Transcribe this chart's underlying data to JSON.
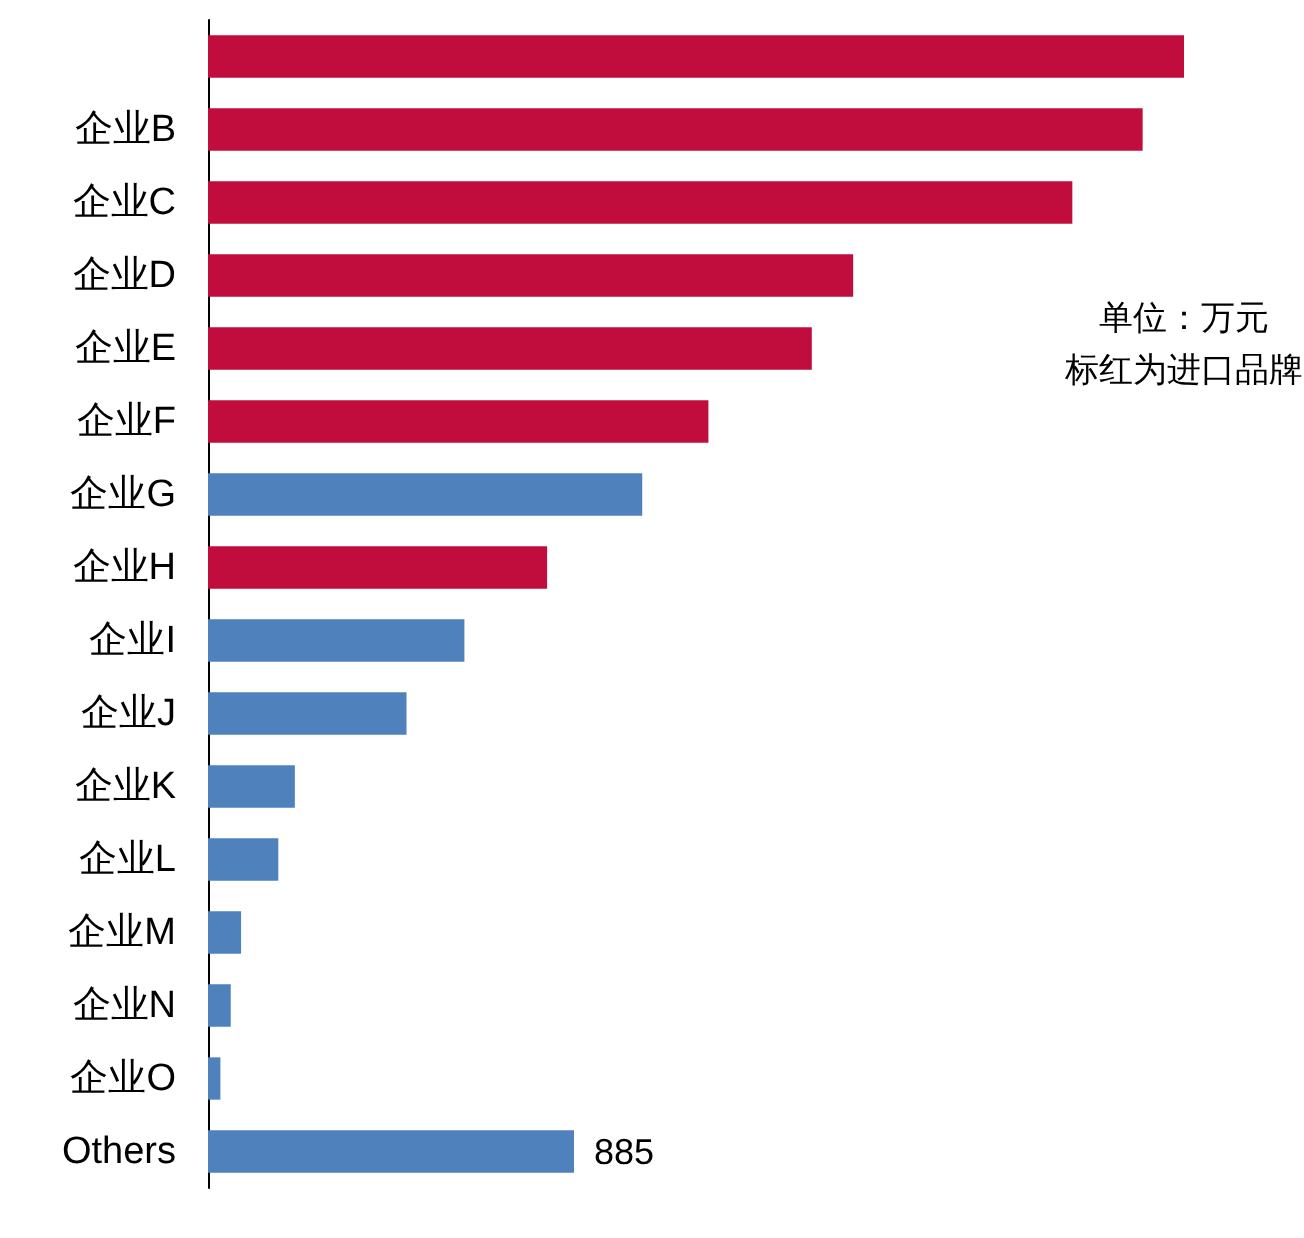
{
  "chart_data": {
    "type": "bar",
    "orientation": "horizontal",
    "categories": [
      null,
      "企业B",
      "企业C",
      "企业D",
      "企业E",
      "企业F",
      "企业G",
      "企业H",
      "企业I",
      "企业J",
      "企业K",
      "企业L",
      "企业M",
      "企业N",
      "企业O",
      "Others"
    ],
    "values": [
      2360,
      2260,
      2090,
      1560,
      1460,
      1210,
      1050,
      820,
      620,
      480,
      210,
      170,
      80,
      55,
      30,
      885
    ],
    "colors": [
      "#c00d3e",
      "#c00d3e",
      "#c00d3e",
      "#c00d3e",
      "#c00d3e",
      "#c00d3e",
      "#4f81bd",
      "#c00d3e",
      "#4f81bd",
      "#4f81bd",
      "#4f81bd",
      "#4f81bd",
      "#4f81bd",
      "#4f81bd",
      "#4f81bd",
      "#4f81bd"
    ],
    "value_labels": [
      null,
      null,
      null,
      null,
      null,
      null,
      null,
      null,
      null,
      null,
      null,
      null,
      null,
      null,
      null,
      "885"
    ],
    "annotations": [
      "单位：万元",
      "标红为进口品牌"
    ],
    "tick_labels": "y"
  }
}
